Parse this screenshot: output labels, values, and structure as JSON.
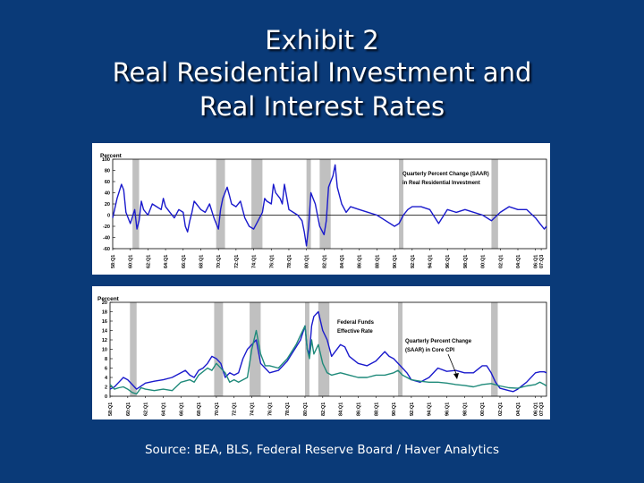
{
  "slide": {
    "title_line1": "Exhibit 2",
    "title_line2": "Real Residential Investment and",
    "title_line3": "Real Interest Rates",
    "source": "Source:  BEA, BLS, Federal Reserve Board / Haver Analytics"
  },
  "colors": {
    "background": "#0a3a78",
    "recession": "#c0c0c0",
    "series_blue": "#1a1acc",
    "series_teal": "#1f8a7a"
  },
  "chart_data": [
    {
      "type": "line",
      "title": "",
      "ylabel": "Percent",
      "ylim": [
        -60,
        100
      ],
      "yticks": [
        "100",
        "80",
        "60",
        "40",
        "20",
        "0",
        "-20",
        "-40",
        "-60"
      ],
      "xlim": [
        1958,
        2007.25
      ],
      "xticks": [
        "58:Q1",
        "60:Q1",
        "62:Q1",
        "64:Q1",
        "66:Q1",
        "68:Q1",
        "70:Q1",
        "72:Q1",
        "74:Q1",
        "76:Q1",
        "78:Q1",
        "80:Q1",
        "82:Q1",
        "84:Q1",
        "86:Q1",
        "88:Q1",
        "90:Q1",
        "92:Q1",
        "94:Q1",
        "96:Q1",
        "98:Q1",
        "00:Q1",
        "02:Q1",
        "04:Q1",
        "06:Q1",
        "07:Q3"
      ],
      "recessions": [
        [
          1960.25,
          1961.0
        ],
        [
          1969.75,
          1970.75
        ],
        [
          1973.75,
          1975.0
        ],
        [
          1980.0,
          1980.5
        ],
        [
          1981.5,
          1982.75
        ],
        [
          1990.5,
          1991.0
        ],
        [
          2001.0,
          2001.75
        ]
      ],
      "annotations": [
        "Quarterly Percent Change (SAAR)",
        "in Real Residential Investment"
      ],
      "series": [
        {
          "name": "Quarterly Percent Change (SAAR) in Real Residential Investment",
          "x": [
            1958,
            1958.5,
            1959,
            1959.25,
            1959.5,
            1960,
            1960.5,
            1960.75,
            1961,
            1961.25,
            1961.5,
            1962,
            1962.5,
            1963,
            1963.5,
            1963.75,
            1964,
            1964.5,
            1965,
            1965.5,
            1966,
            1966.25,
            1966.5,
            1966.75,
            1967,
            1967.25,
            1967.5,
            1967.75,
            1968,
            1968.5,
            1969,
            1969.5,
            1970,
            1970.25,
            1970.5,
            1971,
            1971.25,
            1971.5,
            1972,
            1972.5,
            1973,
            1973.5,
            1974,
            1974.5,
            1975,
            1975.25,
            1975.5,
            1976,
            1976.25,
            1976.5,
            1977,
            1977.25,
            1977.5,
            1978,
            1978.5,
            1979,
            1979.5,
            1979.75,
            1980,
            1980.25,
            1980.5,
            1980.75,
            1981,
            1981.5,
            1982,
            1982.25,
            1982.5,
            1983,
            1983.25,
            1983.5,
            1984,
            1984.5,
            1985,
            1986,
            1987,
            1988,
            1989,
            1990,
            1990.5,
            1991,
            1991.5,
            1992,
            1993,
            1994,
            1995,
            1996,
            1997,
            1998,
            1999,
            2000,
            2001,
            2002,
            2003,
            2004,
            2005,
            2006,
            2006.5,
            2007,
            2007.25
          ],
          "y": [
            -5,
            30,
            55,
            45,
            5,
            -15,
            10,
            -25,
            -10,
            25,
            10,
            0,
            20,
            15,
            10,
            30,
            15,
            5,
            -5,
            10,
            5,
            -20,
            -30,
            -10,
            5,
            25,
            20,
            15,
            10,
            5,
            20,
            -5,
            -25,
            10,
            30,
            50,
            35,
            20,
            15,
            25,
            -5,
            -20,
            -25,
            -10,
            5,
            30,
            25,
            20,
            55,
            40,
            30,
            20,
            55,
            10,
            5,
            0,
            -10,
            -30,
            -55,
            -20,
            40,
            30,
            20,
            -20,
            -35,
            -10,
            50,
            70,
            90,
            50,
            20,
            5,
            15,
            10,
            5,
            0,
            -10,
            -20,
            -15,
            0,
            10,
            15,
            15,
            10,
            -15,
            10,
            5,
            10,
            5,
            0,
            -10,
            5,
            15,
            10,
            10,
            -5,
            -15,
            -25,
            -20
          ]
        }
      ]
    },
    {
      "type": "line",
      "title": "",
      "ylabel": "Percent",
      "ylim": [
        0,
        20
      ],
      "yticks": [
        "20",
        "18",
        "16",
        "14",
        "12",
        "10",
        "8",
        "6",
        "4",
        "2",
        "0"
      ],
      "xlim": [
        1958,
        2007.25
      ],
      "xticks": [
        "58:Q1",
        "60:Q1",
        "62:Q1",
        "64:Q1",
        "66:Q1",
        "68:Q1",
        "70:Q1",
        "72:Q1",
        "74:Q1",
        "76:Q1",
        "78:Q1",
        "80:Q1",
        "82:Q1",
        "84:Q1",
        "86:Q1",
        "88:Q1",
        "90:Q1",
        "92:Q1",
        "94:Q1",
        "96:Q1",
        "98:Q1",
        "00:Q1",
        "02:Q1",
        "04:Q1",
        "06:Q1",
        "07:Q3"
      ],
      "recessions": [
        [
          1960.25,
          1961.0
        ],
        [
          1969.75,
          1970.75
        ],
        [
          1973.75,
          1975.0
        ],
        [
          1980.0,
          1980.5
        ],
        [
          1981.5,
          1982.75
        ],
        [
          1990.5,
          1991.0
        ],
        [
          2001.0,
          2001.75
        ]
      ],
      "annotations": [
        "Federal Funds",
        "Effective Rate",
        "Quarterly Percent Change",
        "(SAAR) in Core CPI"
      ],
      "series": [
        {
          "name": "Federal Funds Effective Rate",
          "x": [
            1958,
            1958.5,
            1959,
            1959.5,
            1960,
            1960.5,
            1961,
            1962,
            1963,
            1964,
            1965,
            1966,
            1966.5,
            1967,
            1967.5,
            1968,
            1968.5,
            1969,
            1969.5,
            1970,
            1970.5,
            1971,
            1971.5,
            1972,
            1972.5,
            1973,
            1973.5,
            1974,
            1974.5,
            1975,
            1975.5,
            1976,
            1977,
            1978,
            1978.5,
            1979,
            1979.5,
            1980,
            1980.25,
            1980.5,
            1980.75,
            1981,
            1981.5,
            1982,
            1982.5,
            1983,
            1984,
            1984.5,
            1985,
            1986,
            1987,
            1988,
            1989,
            1989.5,
            1990,
            1991,
            1991.5,
            1992,
            1993,
            1994,
            1995,
            1996,
            1997,
            1998,
            1999,
            2000,
            2000.5,
            2001,
            2001.5,
            2002,
            2003,
            2003.5,
            2004,
            2005,
            2006,
            2006.5,
            2007,
            2007.25
          ],
          "y": [
            1.5,
            2,
            3,
            4,
            3.5,
            2.5,
            1.5,
            2.8,
            3.2,
            3.5,
            4,
            5,
            5.5,
            4.5,
            4,
            5.5,
            6,
            7,
            8.5,
            8,
            7,
            4,
            5,
            4.5,
            5,
            8,
            10,
            11,
            12,
            7,
            6,
            5,
            5.5,
            7.5,
            9,
            10.5,
            12,
            15,
            10,
            9,
            15,
            17,
            18,
            14,
            12,
            8.5,
            11,
            10.5,
            8.5,
            7,
            6.5,
            7.5,
            9.5,
            8.5,
            8,
            6,
            5,
            3.5,
            3,
            4,
            6,
            5.3,
            5.5,
            5,
            5,
            6.5,
            6.5,
            5,
            3,
            1.7,
            1.2,
            1,
            1.5,
            3,
            5,
            5.2,
            5.2,
            5
          ]
        },
        {
          "name": "Quarterly Percent Change (SAAR) in Core CPI",
          "x": [
            1958,
            1958.5,
            1959,
            1959.5,
            1960,
            1960.5,
            1961,
            1961.5,
            1962,
            1963,
            1964,
            1965,
            1966,
            1967,
            1967.5,
            1968,
            1969,
            1969.5,
            1970,
            1971,
            1971.5,
            1972,
            1972.5,
            1973,
            1973.5,
            1974,
            1974.5,
            1975,
            1975.5,
            1976,
            1977,
            1978,
            1979,
            1979.5,
            1980,
            1980.25,
            1980.5,
            1980.75,
            1981,
            1981.5,
            1982,
            1982.5,
            1983,
            1984,
            1985,
            1986,
            1987,
            1988,
            1989,
            1990,
            1990.5,
            1991,
            1992,
            1993,
            1994,
            1995,
            1996,
            1997,
            1998,
            1999,
            2000,
            2001,
            2002,
            2003,
            2004,
            2005,
            2006,
            2006.5,
            2007,
            2007.25
          ],
          "y": [
            2.5,
            1.5,
            1.8,
            2,
            1.5,
            0.8,
            0.5,
            1.8,
            1.5,
            1.2,
            1.5,
            1.2,
            3,
            3.5,
            3,
            4.5,
            6,
            5.5,
            7,
            5,
            3,
            3.5,
            3,
            3.5,
            4,
            10,
            14,
            9,
            6.5,
            6.5,
            6,
            8,
            11,
            13,
            15,
            10,
            8,
            12,
            9,
            11,
            7,
            5,
            4.5,
            5,
            4.5,
            4,
            4,
            4.5,
            4.5,
            5,
            5.5,
            4.5,
            3.5,
            3.2,
            3,
            3,
            2.8,
            2.5,
            2.3,
            2,
            2.5,
            2.7,
            2.2,
            1.8,
            1.7,
            2.2,
            2.5,
            3,
            2.5,
            2.2
          ]
        }
      ]
    }
  ]
}
